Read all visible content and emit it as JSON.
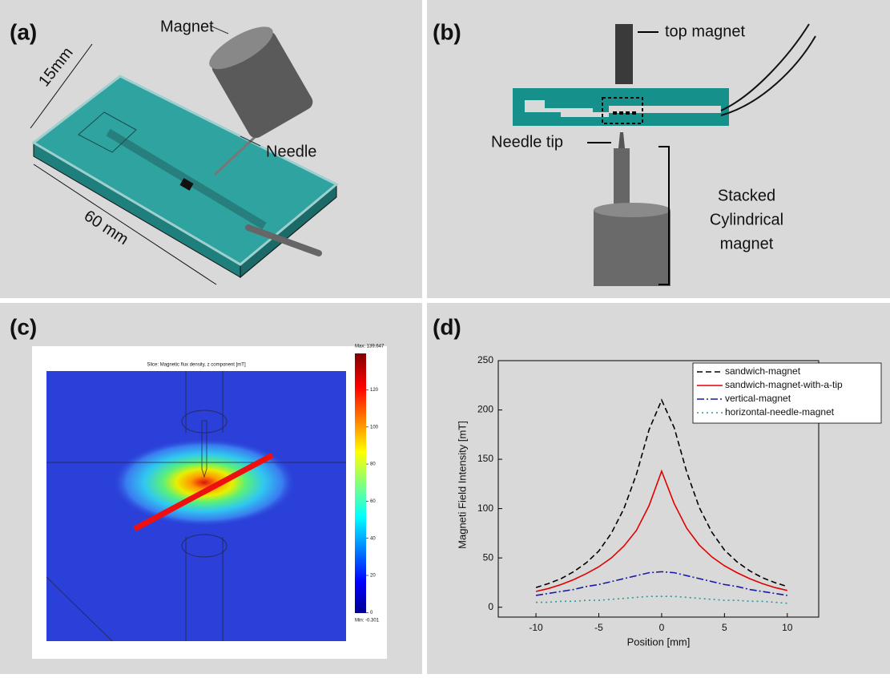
{
  "panels": {
    "a": {
      "label": "(a)",
      "magnet": "Magnet",
      "needle": "Needle",
      "width": "15mm",
      "length": "60 mm"
    },
    "b": {
      "label": "(b)",
      "top_magnet": "top magnet",
      "needle_tip": "Needle tip",
      "stacked_magnet": [
        "Stacked",
        "Cylindrical",
        "magnet"
      ]
    },
    "c": {
      "label": "(c)",
      "title": "Slice: Magnetic flux density, z component [mT]",
      "max": "Max: 139.647",
      "min": "Min: -0.301",
      "colorbar_lim": [
        -0.301,
        139.647
      ],
      "colorbar_ticks": [
        0,
        20,
        40,
        60,
        80,
        100,
        120
      ]
    },
    "d": {
      "label": "(d)"
    }
  },
  "chart_data": {
    "type": "line",
    "xlabel": "Position [mm]",
    "ylabel": "Magneti Field Intensity [mT]",
    "x": [
      -10,
      -9,
      -8,
      -7,
      -6,
      -5,
      -4,
      -3,
      -2,
      -1,
      0,
      1,
      2,
      3,
      4,
      5,
      6,
      7,
      8,
      9,
      10
    ],
    "xlim": [
      -13,
      12.5
    ],
    "xticks": [
      -10,
      -5,
      0,
      5,
      10
    ],
    "ylim": [
      -10,
      250
    ],
    "yticks": [
      0,
      50,
      100,
      150,
      200,
      250
    ],
    "legend": "upper right",
    "series": [
      {
        "name": "sandwich-magnet",
        "color": "#000000",
        "dash": "dashed",
        "values": [
          20,
          24,
          29,
          36,
          45,
          57,
          75,
          100,
          135,
          180,
          210,
          182,
          137,
          101,
          76,
          58,
          46,
          37,
          30,
          25,
          21
        ]
      },
      {
        "name": "sandwich-magnet-with-a-tip",
        "color": "#e00000",
        "dash": "solid",
        "values": [
          16,
          19,
          23,
          28,
          34,
          41,
          50,
          62,
          78,
          103,
          138,
          105,
          80,
          63,
          51,
          42,
          35,
          29,
          24,
          20,
          17
        ]
      },
      {
        "name": "vertical-magnet",
        "color": "#1a1aa8",
        "dash": "dashdot",
        "values": [
          12,
          14,
          16,
          18,
          21,
          23,
          26,
          29,
          32,
          35,
          36,
          35,
          32,
          29,
          26,
          23,
          21,
          18,
          16,
          14,
          12
        ]
      },
      {
        "name": "horizontal-needle-magnet",
        "color": "#2a9a9a",
        "dash": "dotted",
        "values": [
          5,
          5,
          6,
          6,
          7,
          7,
          8,
          9,
          10,
          11,
          11,
          11,
          10,
          9,
          8,
          7,
          7,
          6,
          6,
          5,
          4
        ]
      }
    ]
  }
}
